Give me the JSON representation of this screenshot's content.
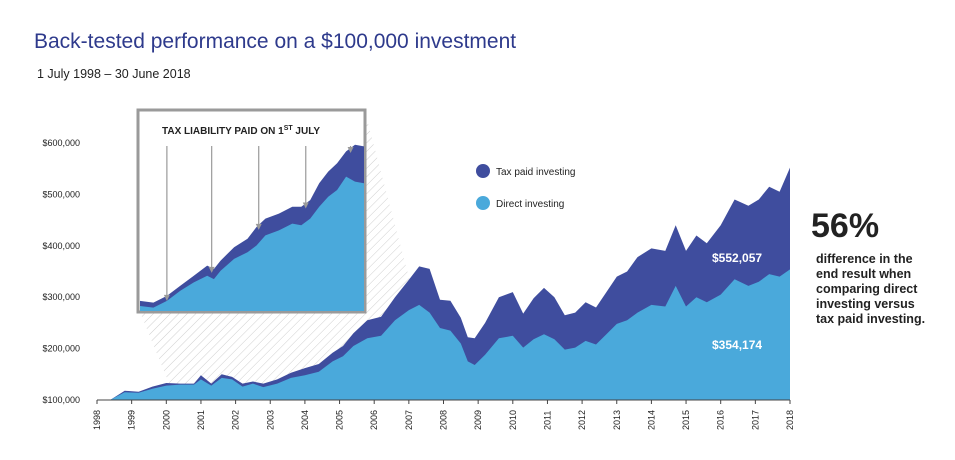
{
  "header": {
    "title": "Back-tested performance on a $100,000 investment",
    "subtitle": "1 July 1998 – 30 June 2018"
  },
  "callout": {
    "value": "56%",
    "text": "difference in the end result when comparing direct investing versus tax paid investing."
  },
  "colors": {
    "tax_paid": "#3f4d9e",
    "direct": "#4aa9db",
    "title": "#2e3a8c"
  },
  "chart_data": [
    {
      "type": "area",
      "title": "",
      "xlabel": "",
      "ylabel": "",
      "ylim": [
        100000,
        600000
      ],
      "xlim": [
        1998,
        2018
      ],
      "y_ticks": [
        "$100,000",
        "$200,000",
        "$300,000",
        "$400,000",
        "$500,000",
        "$600,000"
      ],
      "x_ticks": [
        "1998",
        "1999",
        "2000",
        "2001",
        "2002",
        "2003",
        "2004",
        "2005",
        "2006",
        "2007",
        "2008",
        "2009",
        "2010",
        "2011",
        "2012",
        "2013",
        "2014",
        "2015",
        "2016",
        "2017",
        "2018"
      ],
      "x": [
        1998.0,
        1998.4,
        1998.8,
        1999.2,
        1999.6,
        2000.0,
        2000.4,
        2000.8,
        2001.0,
        2001.3,
        2001.6,
        2001.9,
        2002.2,
        2002.5,
        2002.8,
        2003.2,
        2003.6,
        2004.0,
        2004.4,
        2004.8,
        2005.1,
        2005.4,
        2005.8,
        2006.2,
        2006.6,
        2007.0,
        2007.3,
        2007.6,
        2007.9,
        2008.2,
        2008.5,
        2008.7,
        2008.9,
        2009.2,
        2009.6,
        2010.0,
        2010.3,
        2010.6,
        2010.9,
        2011.2,
        2011.5,
        2011.8,
        2012.1,
        2012.4,
        2012.7,
        2013.0,
        2013.3,
        2013.6,
        2014.0,
        2014.4,
        2014.7,
        2015.0,
        2015.3,
        2015.6,
        2016.0,
        2016.4,
        2016.8,
        2017.1,
        2017.4,
        2017.7,
        2018.0
      ],
      "series": [
        {
          "name": "Tax paid investing",
          "values": [
            100000,
            101000,
            118000,
            116000,
            126000,
            133000,
            132000,
            132000,
            148000,
            132000,
            150000,
            145000,
            132000,
            136000,
            132000,
            140000,
            153000,
            162000,
            170000,
            192000,
            205000,
            230000,
            255000,
            262000,
            300000,
            334000,
            360000,
            355000,
            295000,
            293000,
            260000,
            222000,
            220000,
            250000,
            300000,
            310000,
            268000,
            298000,
            318000,
            300000,
            265000,
            270000,
            290000,
            280000,
            310000,
            340000,
            350000,
            378000,
            395000,
            390000,
            440000,
            390000,
            420000,
            405000,
            440000,
            490000,
            478000,
            490000,
            515000,
            505000,
            552057
          ]
        },
        {
          "name": "Direct investing",
          "values": [
            100000,
            101000,
            115000,
            114000,
            122000,
            128000,
            130000,
            130000,
            140000,
            128000,
            143000,
            140000,
            126000,
            132000,
            125000,
            132000,
            143000,
            148000,
            155000,
            175000,
            185000,
            205000,
            220000,
            225000,
            255000,
            275000,
            285000,
            270000,
            240000,
            235000,
            210000,
            175000,
            168000,
            188000,
            220000,
            225000,
            202000,
            218000,
            228000,
            218000,
            198000,
            202000,
            215000,
            208000,
            228000,
            248000,
            255000,
            270000,
            285000,
            282000,
            322000,
            282000,
            300000,
            290000,
            305000,
            335000,
            322000,
            330000,
            345000,
            340000,
            354174
          ]
        }
      ],
      "legend": [
        "Tax paid investing",
        "Direct investing"
      ],
      "legend_placement": "top-right",
      "end_labels": [
        "$552,057",
        "$354,174"
      ],
      "grid": false
    },
    {
      "type": "area",
      "title": "TAX LIABILITY PAID ON 1ST JULY",
      "annotations": [
        "annual tax payment markers (downward arrows) each 1 July"
      ],
      "x": [
        0,
        0.06,
        0.12,
        0.18,
        0.24,
        0.3,
        0.33,
        0.36,
        0.42,
        0.48,
        0.52,
        0.56,
        0.62,
        0.68,
        0.72,
        0.76,
        0.8,
        0.84,
        0.88,
        0.92,
        0.96,
        1.0
      ],
      "series": [
        {
          "name": "Tax paid investing",
          "values": [
            0.06,
            0.05,
            0.09,
            0.15,
            0.21,
            0.27,
            0.25,
            0.3,
            0.38,
            0.43,
            0.5,
            0.55,
            0.58,
            0.62,
            0.62,
            0.66,
            0.76,
            0.83,
            0.88,
            0.95,
            0.99,
            0.98
          ]
        },
        {
          "name": "Direct investing",
          "values": [
            0.03,
            0.02,
            0.06,
            0.12,
            0.17,
            0.21,
            0.19,
            0.24,
            0.31,
            0.35,
            0.39,
            0.45,
            0.48,
            0.52,
            0.51,
            0.55,
            0.62,
            0.68,
            0.72,
            0.8,
            0.77,
            0.76
          ]
        }
      ],
      "arrow_positions": [
        0.12,
        0.32,
        0.53,
        0.74,
        0.94
      ]
    }
  ]
}
